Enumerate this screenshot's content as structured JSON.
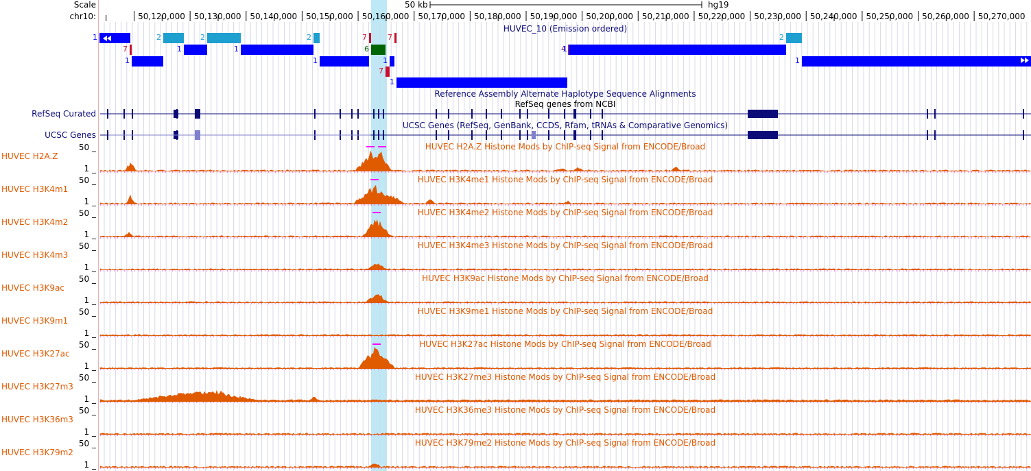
{
  "header": {
    "scale_label": "Scale",
    "chrom_label": "chr10:",
    "scale_bar_text": "50 kb",
    "assembly": "hg19",
    "ticks": [
      "50,120,000",
      "50,130,000",
      "50,140,000",
      "50,150,000",
      "50,160,000",
      "50,170,000",
      "50,180,000",
      "50,190,000",
      "50,200,000",
      "50,210,000",
      "50,220,000",
      "50,230,000",
      "50,240,000",
      "50,250,000",
      "50,260,000",
      "50,270,000"
    ]
  },
  "chromhmm": {
    "title": "HUVEC_10 (Emission ordered)",
    "colors": {
      "1": "#0000ff",
      "2": "#1d9fcf",
      "4": "#7b2e8f",
      "6": "#006400",
      "7": "#c8102e"
    }
  },
  "alt_haplotype_title": "Reference Assembly Alternate Haplotype Sequence Alignments",
  "refseq": {
    "label": "RefSeq Curated",
    "title": "RefSeq genes from NCBI"
  },
  "ucsc": {
    "label": "UCSC Genes",
    "title": "UCSC Genes (RefSeq, GenBank, CCDS, Rfam, tRNAs & Comparative Genomics)"
  },
  "signal_tracks": [
    {
      "label": "HUVEC H2A.Z",
      "title": "HUVEC H2A.Z Histone Mods by ChIP-seq Signal from ENCODE/Broad",
      "max": "50 _",
      "min": "1 _"
    },
    {
      "label": "HUVEC H3K4m1",
      "title": "HUVEC H3K4me1 Histone Mods by ChIP-seq Signal from ENCODE/Broad",
      "max": "50 _",
      "min": "1 _"
    },
    {
      "label": "HUVEC H3K4m2",
      "title": "HUVEC H3K4me2 Histone Mods by ChIP-seq Signal from ENCODE/Broad",
      "max": "50 _",
      "min": "1 _"
    },
    {
      "label": "HUVEC H3K4m3",
      "title": "HUVEC H3K4me3 Histone Mods by ChIP-seq Signal from ENCODE/Broad",
      "max": "50 _",
      "min": "1 _"
    },
    {
      "label": "HUVEC H3K9ac",
      "title": "HUVEC H3K9ac Histone Mods by ChIP-seq Signal from ENCODE/Broad",
      "max": "50 _",
      "min": "1 _"
    },
    {
      "label": "HUVEC H3K9m1",
      "title": "HUVEC H3K9me1 Histone Mods by ChIP-seq Signal from ENCODE/Broad",
      "max": "50 _",
      "min": "1 _"
    },
    {
      "label": "HUVEC H3K27ac",
      "title": "HUVEC H3K27ac Histone Mods by ChIP-seq Signal from ENCODE/Broad",
      "max": "50 _",
      "min": "1 _"
    },
    {
      "label": "HUVEC H3K27m3",
      "title": "HUVEC H3K27me3 Histone Mods by ChIP-seq Signal from ENCODE/Broad",
      "max": "50 _",
      "min": "1 _"
    },
    {
      "label": "HUVEC H3K36m3",
      "title": "HUVEC H3K36me3 Histone Mods by ChIP-seq Signal from ENCODE/Broad",
      "max": "50 _",
      "min": "1 _"
    },
    {
      "label": "HUVEC H3K79m2",
      "title": "HUVEC H3K79me2 Histone Mods by ChIP-seq Signal from ENCODE/Broad",
      "max": "50 _",
      "min": "1 _"
    }
  ],
  "colors": {
    "signal": "#e05a00",
    "clip": "#ff00ff",
    "highlight": "#bde9f6",
    "gene": "#0c0c78",
    "ucsc_light": "#8080cc",
    "track_label": "#e05a00",
    "grid": "#d8d8e8"
  }
}
